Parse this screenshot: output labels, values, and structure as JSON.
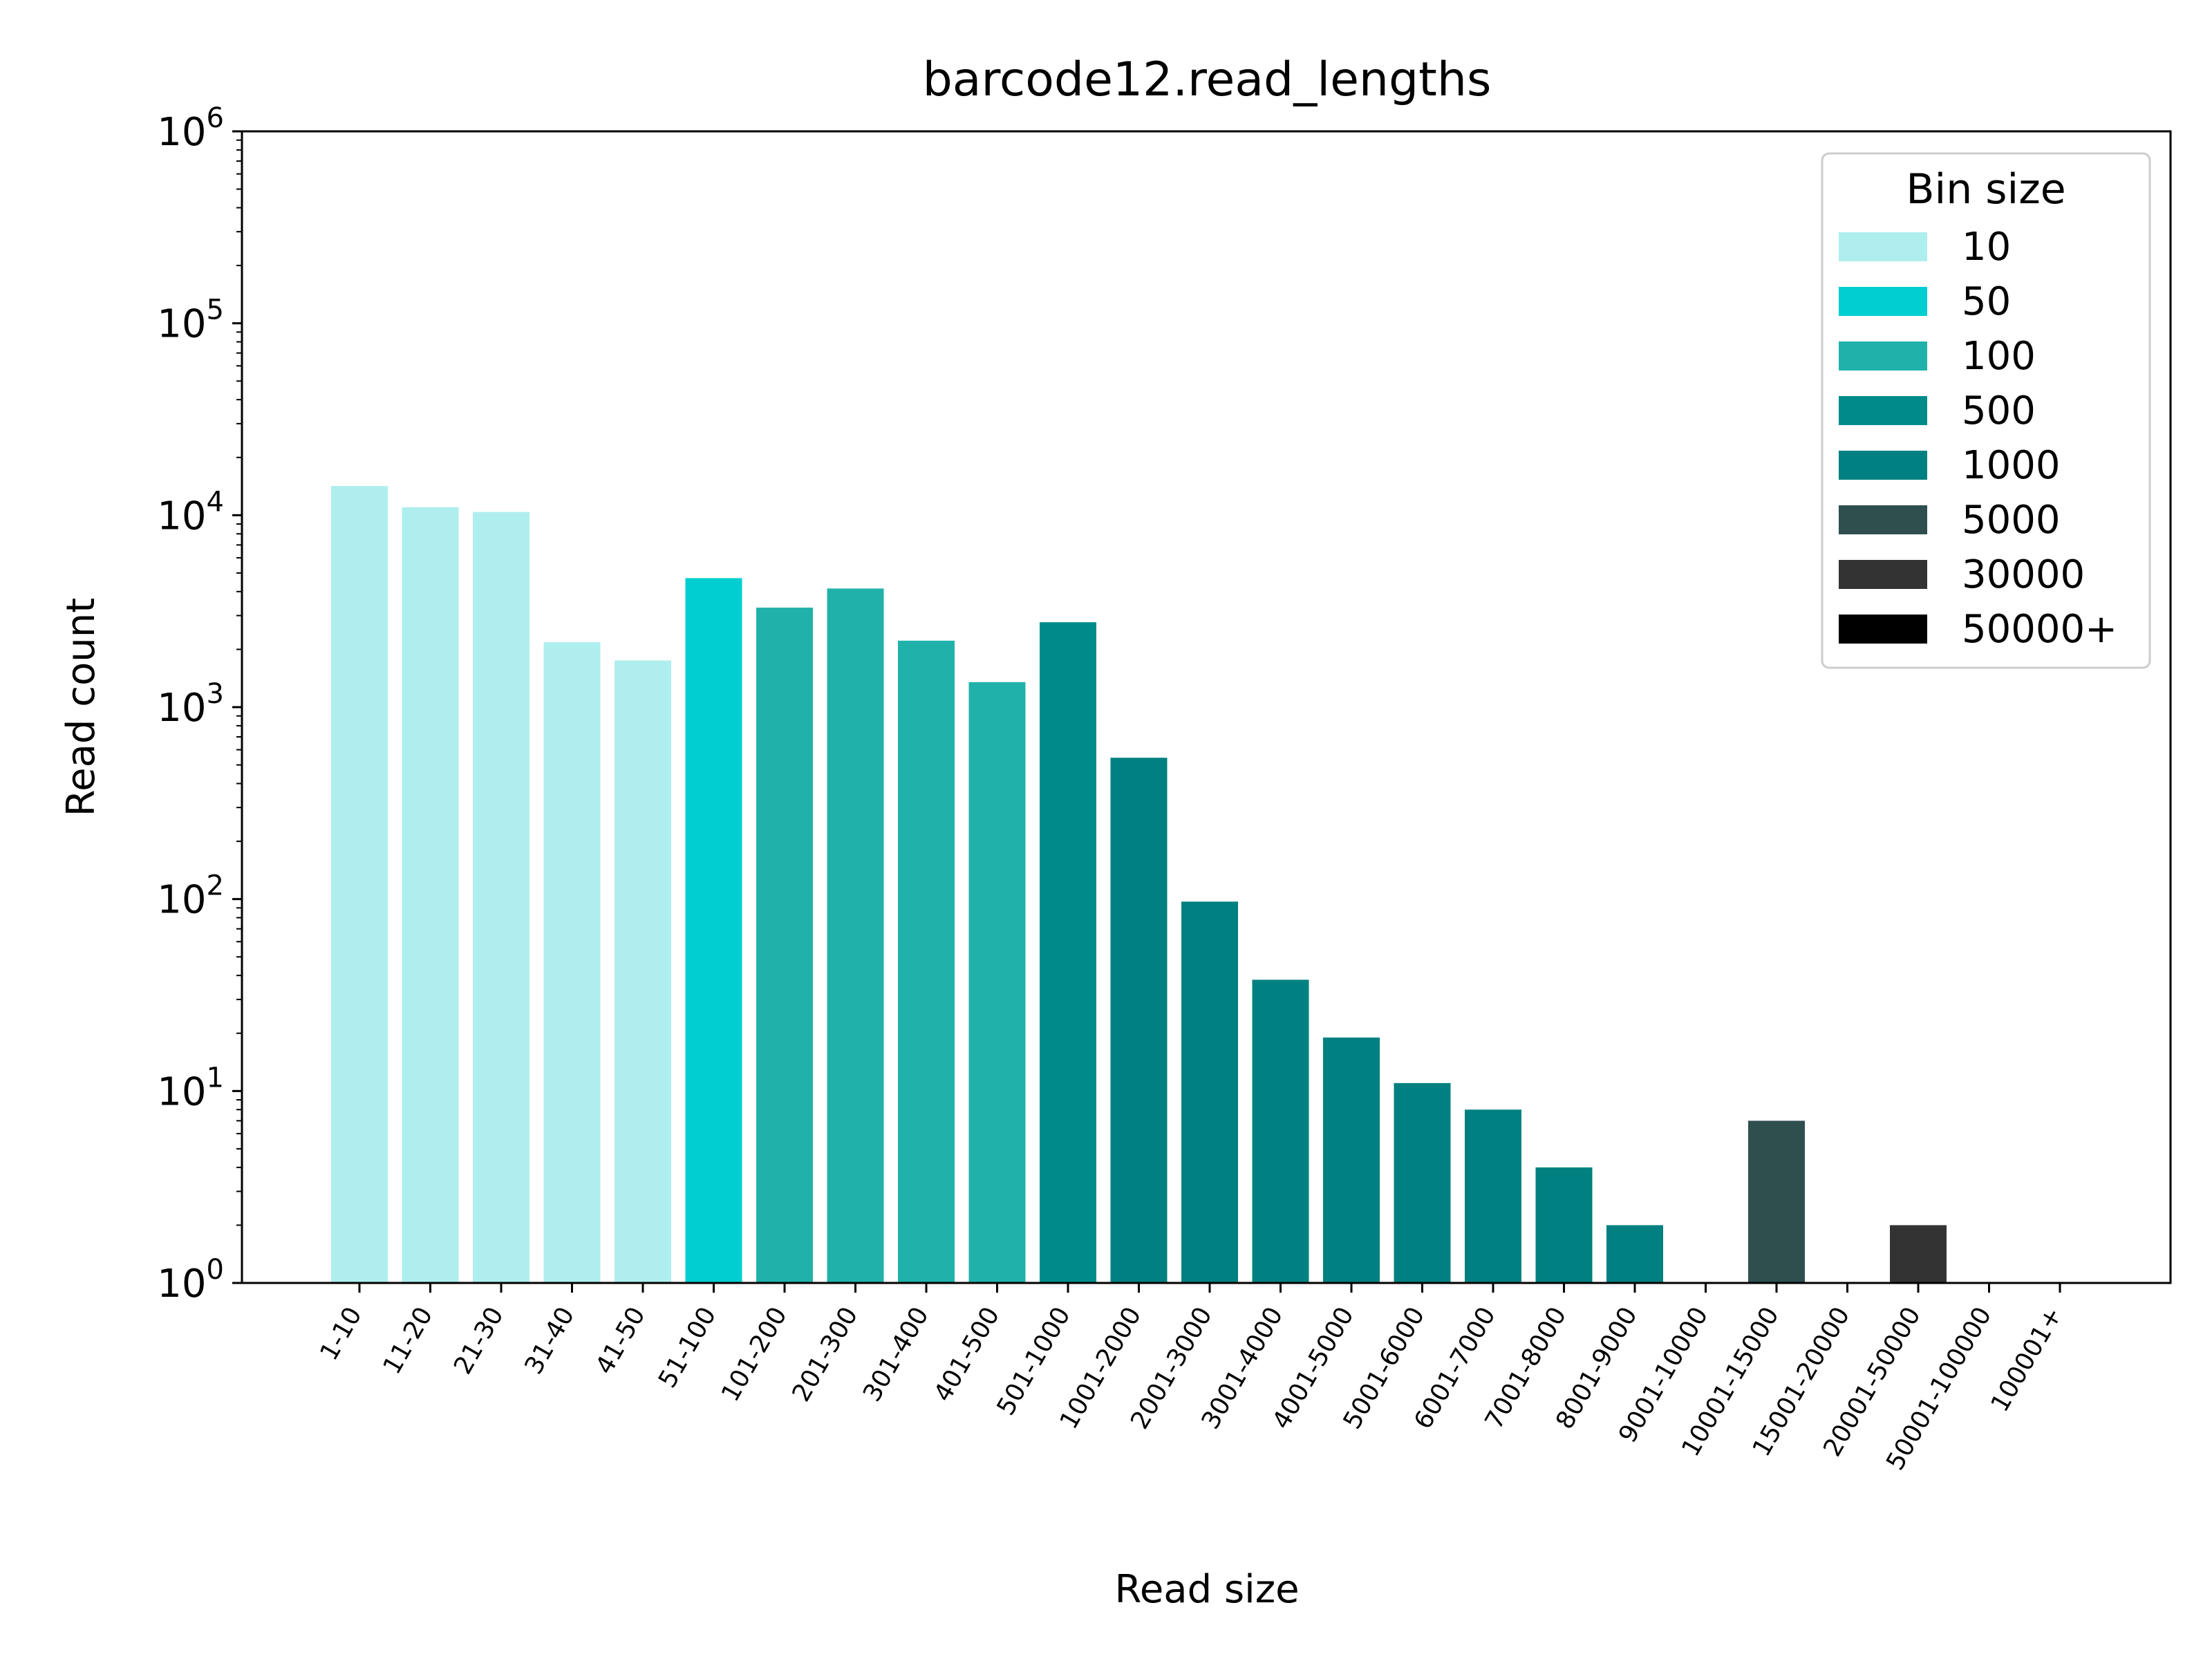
{
  "chart_data": {
    "type": "bar",
    "title": "barcode12.read_lengths",
    "xlabel": "Read size",
    "ylabel": "Read count",
    "yscale": "log",
    "ylim": [
      1,
      1000000
    ],
    "yticks": [
      {
        "value": 1,
        "base": "10",
        "exp": "0"
      },
      {
        "value": 10,
        "base": "10",
        "exp": "1"
      },
      {
        "value": 100,
        "base": "10",
        "exp": "2"
      },
      {
        "value": 1000,
        "base": "10",
        "exp": "3"
      },
      {
        "value": 10000,
        "base": "10",
        "exp": "4"
      },
      {
        "value": 100000,
        "base": "10",
        "exp": "5"
      },
      {
        "value": 1000000,
        "base": "10",
        "exp": "6"
      }
    ],
    "categories": [
      "1-10",
      "11-20",
      "21-30",
      "31-40",
      "41-50",
      "51-100",
      "101-200",
      "201-300",
      "301-400",
      "401-500",
      "501-1000",
      "1001-2000",
      "2001-3000",
      "3001-4000",
      "4001-5000",
      "5001-6000",
      "6001-7000",
      "7001-8000",
      "8001-9000",
      "9001-10000",
      "10001-15000",
      "15001-20000",
      "20001-50000",
      "50001-100000",
      "100001+"
    ],
    "values": [
      14200,
      11000,
      10400,
      2180,
      1750,
      4700,
      3300,
      4150,
      2220,
      1350,
      2770,
      545,
      97,
      38,
      19,
      11,
      8,
      4,
      2,
      0,
      7,
      0,
      2,
      0,
      0
    ],
    "bin_sizes": [
      "10",
      "10",
      "10",
      "10",
      "10",
      "50",
      "100",
      "100",
      "100",
      "100",
      "500",
      "1000",
      "1000",
      "1000",
      "1000",
      "1000",
      "1000",
      "1000",
      "1000",
      "1000",
      "5000",
      "5000",
      "30000",
      "50000+",
      "50000+"
    ],
    "legend": {
      "title": "Bin size",
      "position": "top-right",
      "entries": [
        {
          "label": "10",
          "color": "#afeeee"
        },
        {
          "label": "50",
          "color": "#00ced1"
        },
        {
          "label": "100",
          "color": "#20b2aa"
        },
        {
          "label": "500",
          "color": "#008b8b"
        },
        {
          "label": "1000",
          "color": "#008080"
        },
        {
          "label": "5000",
          "color": "#2f4f4f"
        },
        {
          "label": "30000",
          "color": "#333333"
        },
        {
          "label": "50000+",
          "color": "#000000"
        }
      ]
    },
    "grid": false
  }
}
